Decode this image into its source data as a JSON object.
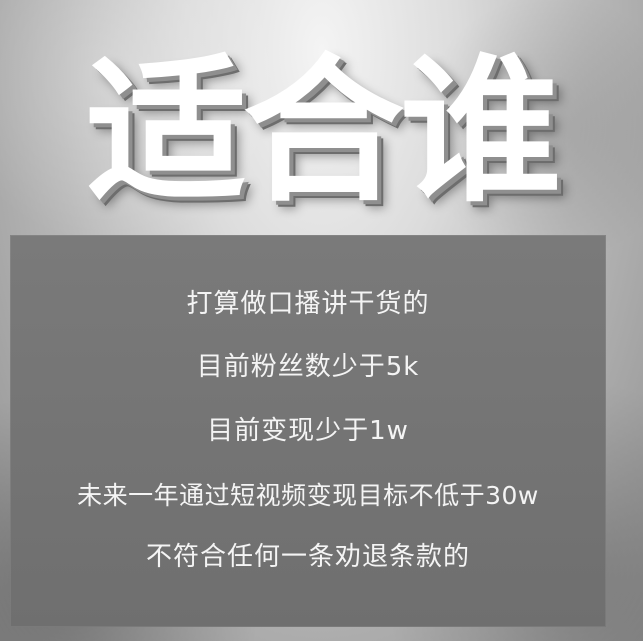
{
  "header": {
    "title": "适合谁"
  },
  "content": {
    "items": [
      "打算做口播讲干货的",
      "目前粉丝数少于5k",
      "目前变现少于1w",
      "未来一年通过短视频变现目标不低于30w",
      "不符合任何一条劝退条款的"
    ]
  }
}
